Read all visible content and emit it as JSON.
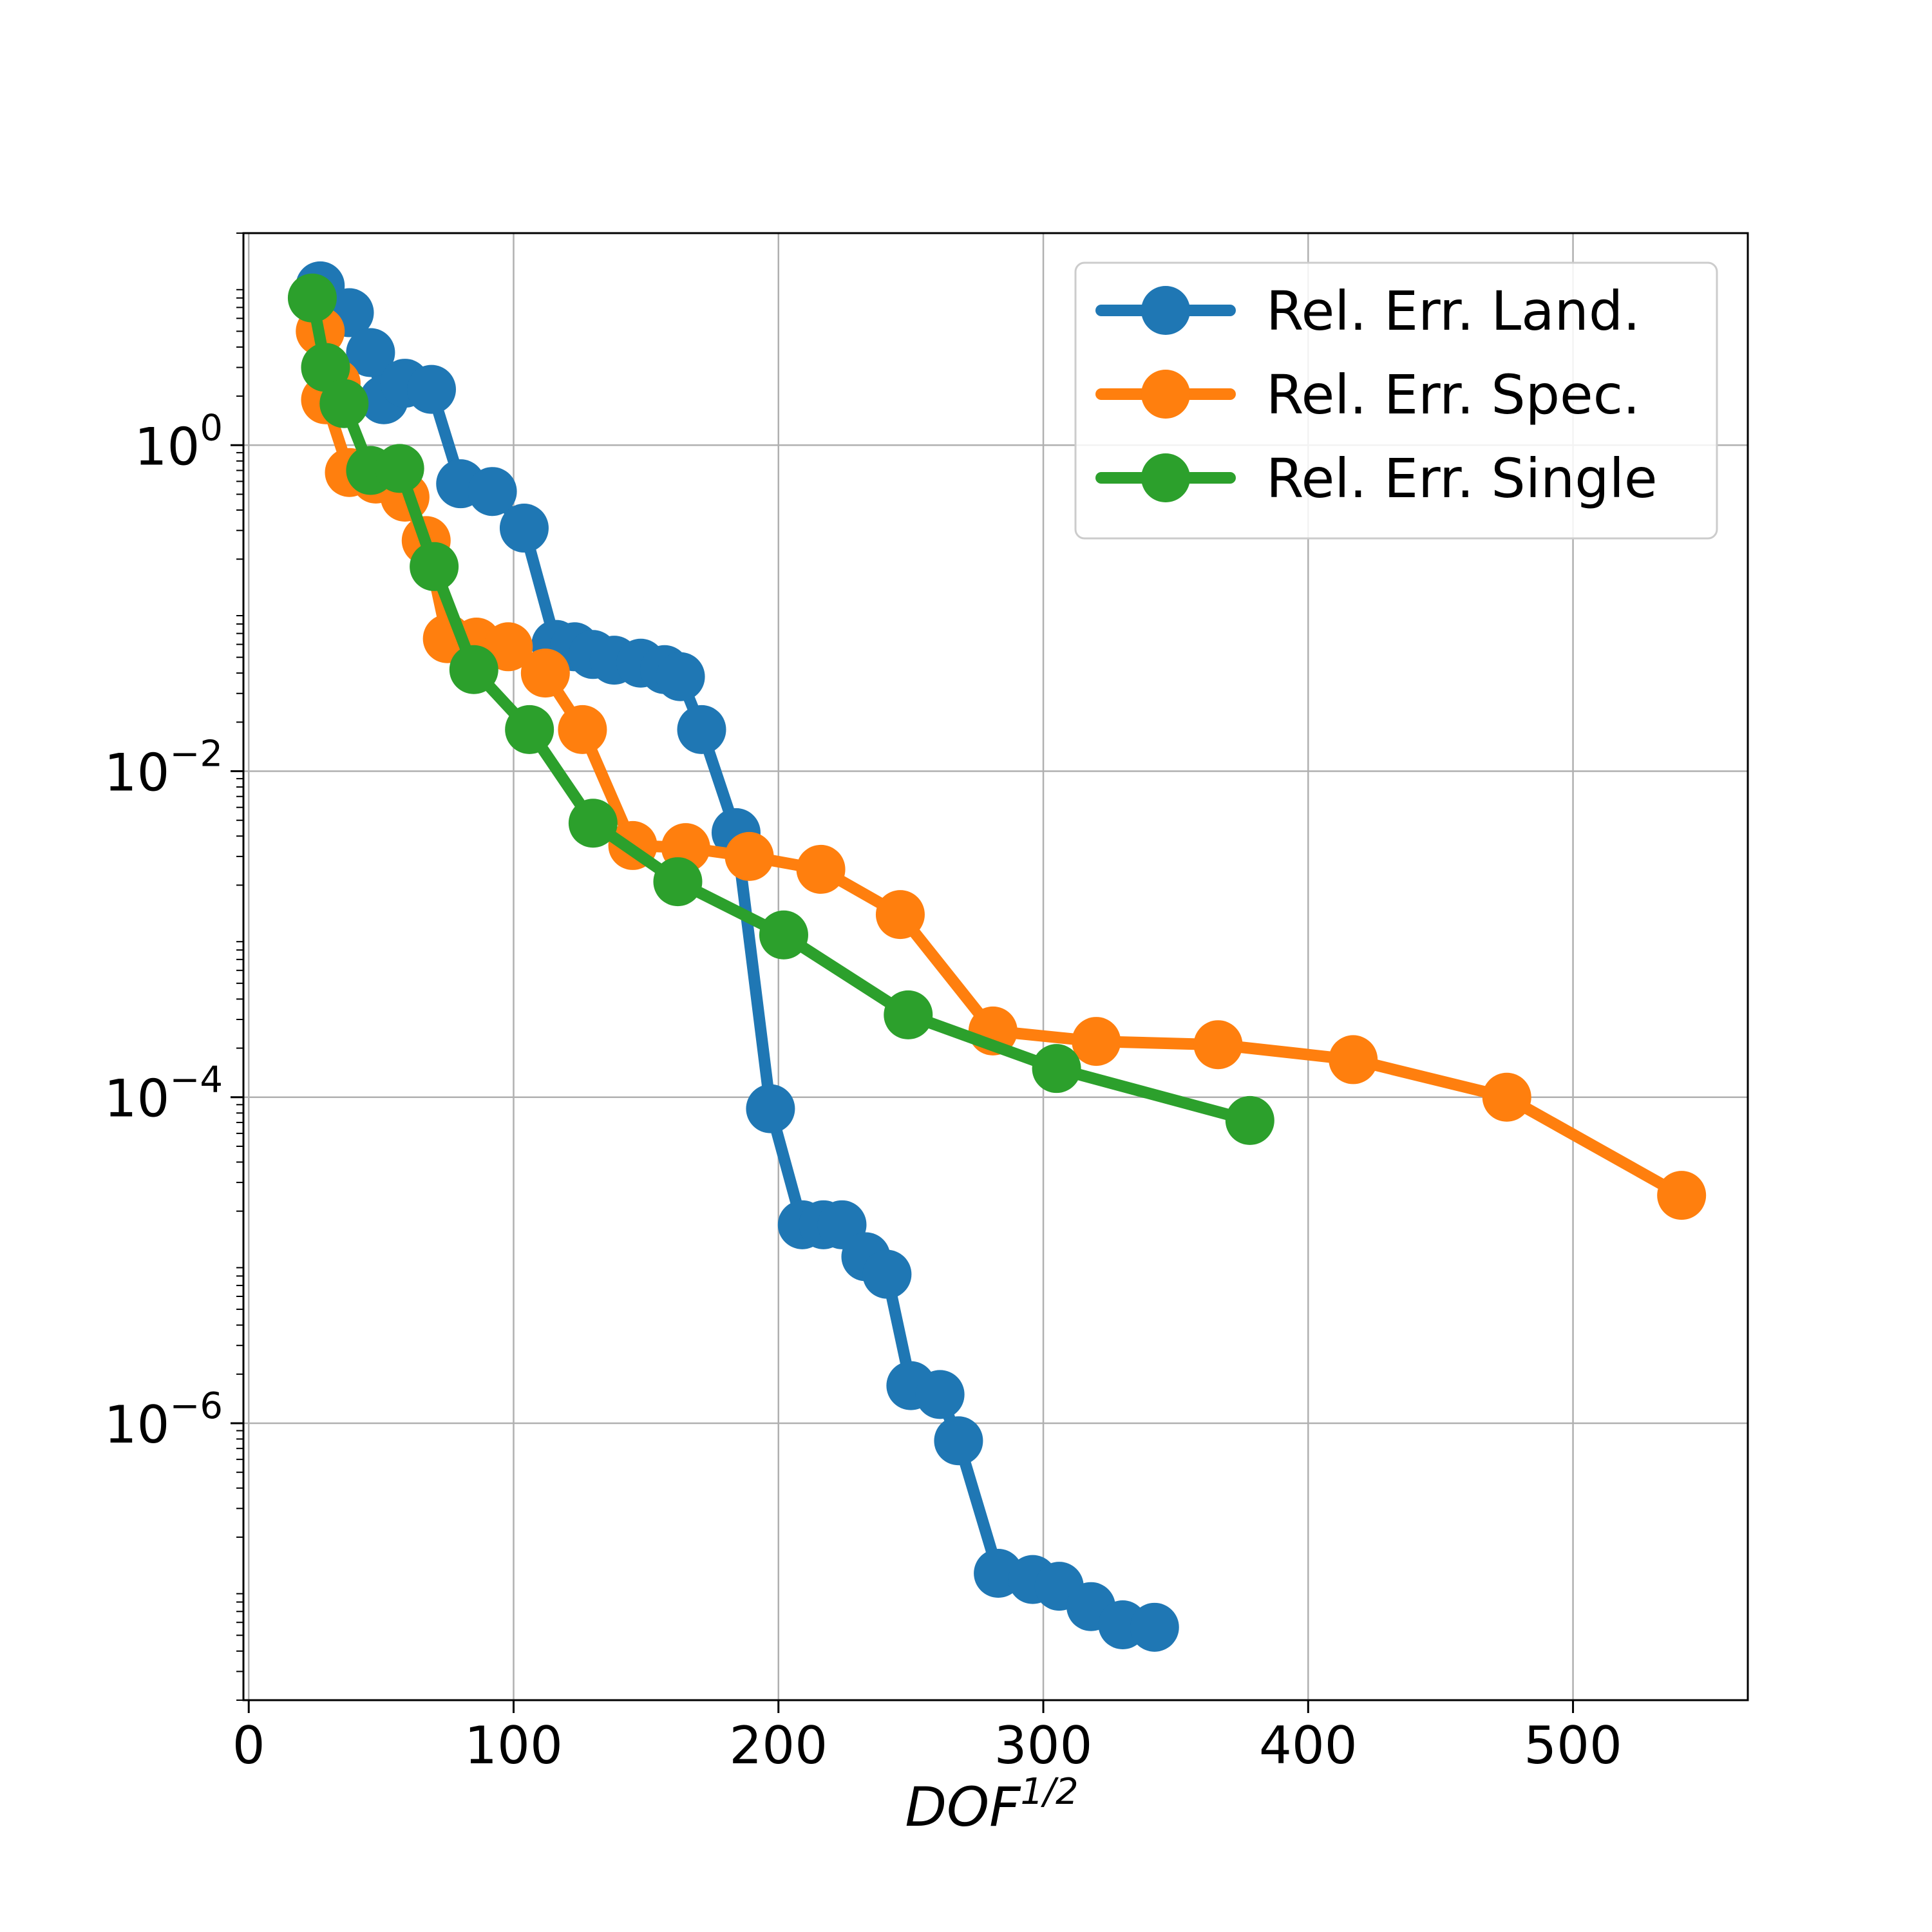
{
  "chart_data": {
    "type": "line",
    "title": "",
    "xlabel": "DOF",
    "xlabel_superscript": "1/2",
    "ylabel": "",
    "y_scale": "log",
    "xlim": [
      -2,
      566
    ],
    "ylim": [
      2e-08,
      20
    ],
    "xticks": [
      0,
      100,
      200,
      300,
      400,
      500
    ],
    "yticks": [
      {
        "value": 1,
        "base": "10",
        "exp": "0"
      },
      {
        "value": 0.01,
        "base": "10",
        "exp": "−2"
      },
      {
        "value": 0.0001,
        "base": "10",
        "exp": "−4"
      },
      {
        "value": 1e-06,
        "base": "10",
        "exp": "−6"
      }
    ],
    "grid": true,
    "legend_position": "top-right",
    "series": [
      {
        "name": "Rel. Err. Land.",
        "color": "#1f77b4",
        "points": [
          [
            27,
            9.5
          ],
          [
            38,
            6.5
          ],
          [
            46,
            3.7
          ],
          [
            51,
            1.9
          ],
          [
            59,
            2.4
          ],
          [
            69,
            2.2
          ],
          [
            80,
            0.58
          ],
          [
            92,
            0.52
          ],
          [
            104,
            0.31
          ],
          [
            116,
            0.06
          ],
          [
            123,
            0.058
          ],
          [
            130,
            0.052
          ],
          [
            138,
            0.048
          ],
          [
            148,
            0.046
          ],
          [
            157,
            0.042
          ],
          [
            163,
            0.038
          ],
          [
            171,
            0.018
          ],
          [
            184,
            0.0042
          ],
          [
            197,
            8.5e-05
          ],
          [
            209,
            1.65e-05
          ],
          [
            217,
            1.65e-05
          ],
          [
            224,
            1.65e-05
          ],
          [
            233,
            1.05e-05
          ],
          [
            241,
            8.2e-06
          ],
          [
            250,
            1.7e-06
          ],
          [
            261,
            1.5e-06
          ],
          [
            268,
            7.8e-07
          ],
          [
            283,
            1.2e-07
          ],
          [
            296,
            1.1e-07
          ],
          [
            306,
            1e-07
          ],
          [
            318,
            7.5e-08
          ],
          [
            330,
            5.8e-08
          ],
          [
            342,
            5.6e-08
          ]
        ]
      },
      {
        "name": "Rel. Err. Spec.",
        "color": "#ff7f0e",
        "points": [
          [
            27,
            5.0
          ],
          [
            33,
            2.4
          ],
          [
            29,
            1.9
          ],
          [
            38,
            0.68
          ],
          [
            48,
            0.62
          ],
          [
            59,
            0.48
          ],
          [
            67,
            0.26
          ],
          [
            75,
            0.065
          ],
          [
            86,
            0.062
          ],
          [
            98,
            0.058
          ],
          [
            112,
            0.04
          ],
          [
            126,
            0.018
          ],
          [
            145,
            0.0035
          ],
          [
            165,
            0.0034
          ],
          [
            189,
            0.003
          ],
          [
            216,
            0.0025
          ],
          [
            246,
            0.00132
          ],
          [
            281,
            0.000255
          ],
          [
            320,
            0.00022
          ],
          [
            366,
            0.00021
          ],
          [
            417,
            0.00017
          ],
          [
            475,
            0.0001
          ],
          [
            541,
            2.5e-05
          ]
        ]
      },
      {
        "name": "Rel. Err. Single",
        "color": "#2ca02c",
        "points": [
          [
            24,
            8.0
          ],
          [
            29,
            3.0
          ],
          [
            36,
            1.8
          ],
          [
            46,
            0.7
          ],
          [
            57,
            0.72
          ],
          [
            70,
            0.18
          ],
          [
            85,
            0.042
          ],
          [
            106,
            0.018
          ],
          [
            130,
            0.0048
          ],
          [
            162,
            0.0021
          ],
          [
            202,
            0.00099
          ],
          [
            249,
            0.00032
          ],
          [
            305,
            0.00015
          ],
          [
            378,
            7.2e-05
          ]
        ]
      }
    ]
  }
}
